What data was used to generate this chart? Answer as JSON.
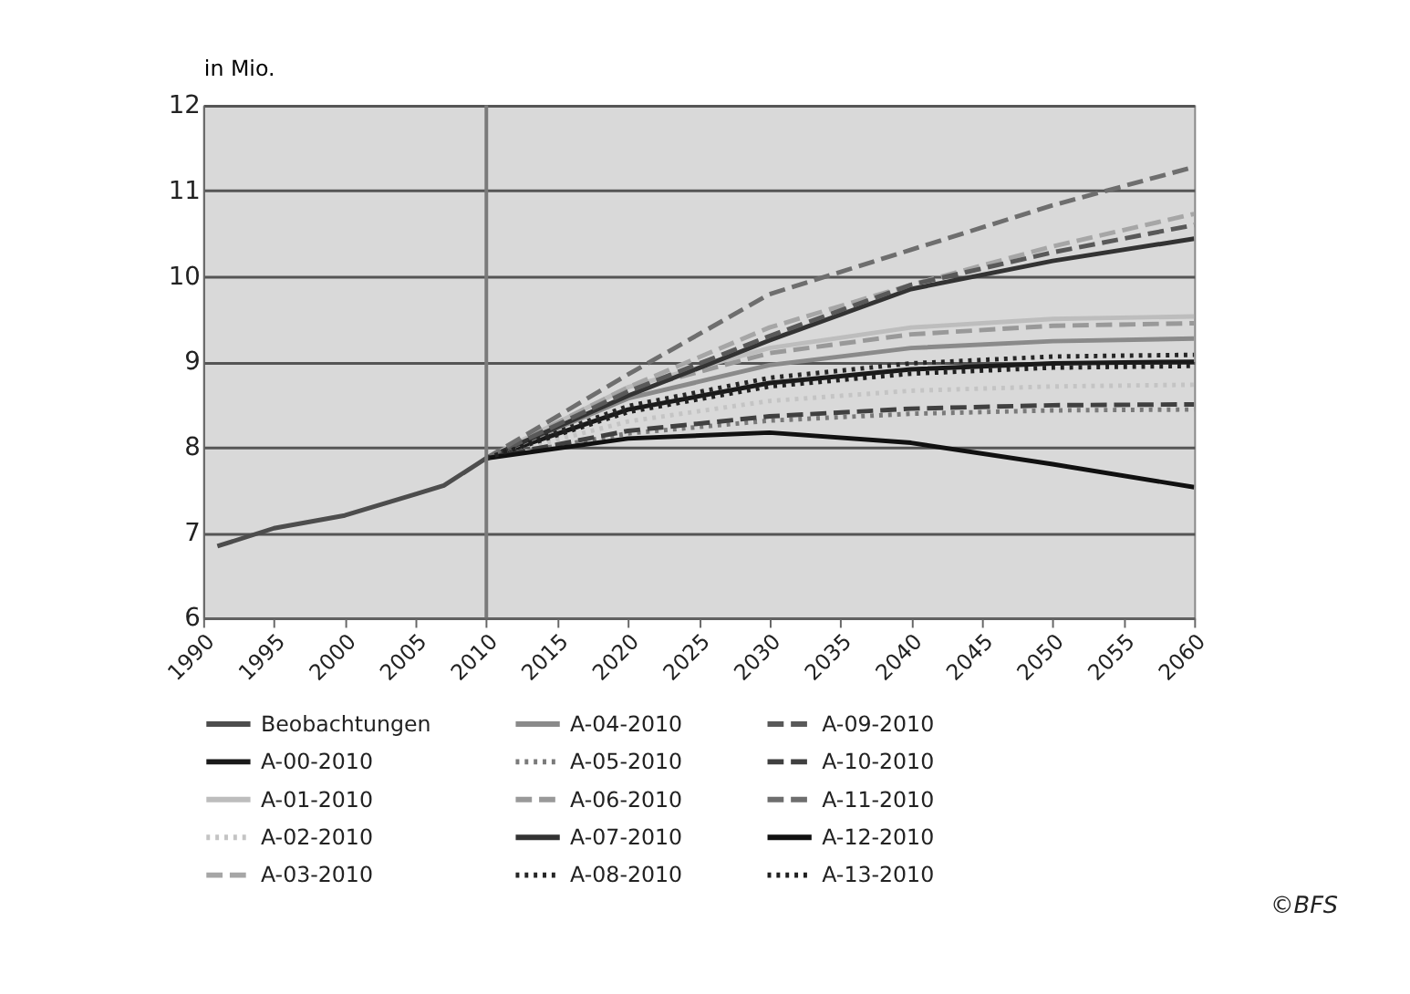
{
  "chart_data": {
    "type": "line",
    "ylabel": "in Mio.",
    "xlim": [
      1990,
      2060
    ],
    "xticks": [
      1990,
      1995,
      2000,
      2005,
      2010,
      2015,
      2020,
      2025,
      2030,
      2035,
      2040,
      2045,
      2050,
      2055,
      2060
    ],
    "ylim": [
      6,
      12
    ],
    "yticks": [
      6,
      7,
      8,
      9,
      10,
      11,
      12
    ],
    "grid": "y",
    "legend": "bottom",
    "ref_lines": [
      {
        "axis": "x",
        "value": 2010,
        "color": "#7a7a7a"
      }
    ],
    "annotations": [
      "©BFS"
    ],
    "series": [
      {
        "name": "Beobachtungen",
        "color": "#4d4d4d",
        "line_style": "solid",
        "x": [
          1991,
          1995,
          2000,
          2005,
          2007,
          2010
        ],
        "values": [
          6.84,
          7.05,
          7.2,
          7.45,
          7.55,
          7.87
        ]
      },
      {
        "name": "A-00-2010",
        "color": "#1a1a1a",
        "line_style": "solid",
        "x": [
          2010,
          2020,
          2030,
          2040,
          2050,
          2060
        ],
        "values": [
          7.87,
          8.44,
          8.75,
          8.91,
          8.98,
          9.0
        ]
      },
      {
        "name": "A-01-2010",
        "color": "#bdbdbd",
        "line_style": "solid",
        "x": [
          2010,
          2020,
          2030,
          2040,
          2050,
          2060
        ],
        "values": [
          7.87,
          8.7,
          9.16,
          9.4,
          9.5,
          9.53
        ]
      },
      {
        "name": "A-02-2010",
        "color": "#c4c4c4",
        "line_style": "dotted",
        "x": [
          2010,
          2020,
          2030,
          2040,
          2050,
          2060
        ],
        "values": [
          7.87,
          8.3,
          8.54,
          8.66,
          8.71,
          8.73
        ]
      },
      {
        "name": "A-03-2010",
        "color": "#a6a6a6",
        "line_style": "dashed",
        "x": [
          2010,
          2020,
          2030,
          2040,
          2050,
          2060
        ],
        "values": [
          7.87,
          8.7,
          9.4,
          9.9,
          10.35,
          10.73
        ]
      },
      {
        "name": "A-04-2010",
        "color": "#8a8a8a",
        "line_style": "solid",
        "x": [
          2010,
          2020,
          2030,
          2040,
          2050,
          2060
        ],
        "values": [
          7.87,
          8.57,
          8.96,
          9.16,
          9.24,
          9.27
        ]
      },
      {
        "name": "A-05-2010",
        "color": "#7a7a7a",
        "line_style": "dotted",
        "x": [
          2010,
          2020,
          2030,
          2040,
          2050,
          2060
        ],
        "values": [
          7.87,
          8.16,
          8.31,
          8.39,
          8.43,
          8.44
        ]
      },
      {
        "name": "A-06-2010",
        "color": "#999999",
        "line_style": "dashed",
        "x": [
          2010,
          2020,
          2030,
          2040,
          2050,
          2060
        ],
        "values": [
          7.87,
          8.66,
          9.1,
          9.32,
          9.42,
          9.45
        ]
      },
      {
        "name": "A-07-2010",
        "color": "#333333",
        "line_style": "solid",
        "x": [
          2010,
          2020,
          2030,
          2040,
          2050,
          2060
        ],
        "values": [
          7.87,
          8.6,
          9.25,
          9.85,
          10.18,
          10.44
        ]
      },
      {
        "name": "A-08-2010",
        "color": "#262626",
        "line_style": "dotted",
        "x": [
          2010,
          2020,
          2030,
          2040,
          2050,
          2060
        ],
        "values": [
          7.87,
          8.48,
          8.81,
          8.98,
          9.06,
          9.08
        ]
      },
      {
        "name": "A-09-2010",
        "color": "#595959",
        "line_style": "dashed",
        "x": [
          2010,
          2020,
          2030,
          2040,
          2050,
          2060
        ],
        "values": [
          7.87,
          8.65,
          9.3,
          9.9,
          10.28,
          10.6
        ]
      },
      {
        "name": "A-10-2010",
        "color": "#404040",
        "line_style": "dashed",
        "x": [
          2010,
          2020,
          2030,
          2040,
          2050,
          2060
        ],
        "values": [
          7.87,
          8.19,
          8.36,
          8.45,
          8.49,
          8.5
        ]
      },
      {
        "name": "A-11-2010",
        "color": "#6e6e6e",
        "line_style": "dashed",
        "x": [
          2010,
          2020,
          2030,
          2040,
          2050,
          2060
        ],
        "values": [
          7.87,
          8.85,
          9.79,
          10.31,
          10.83,
          11.28
        ]
      },
      {
        "name": "A-12-2010",
        "color": "#111111",
        "line_style": "solid",
        "x": [
          2010,
          2020,
          2030,
          2040,
          2050,
          2060
        ],
        "values": [
          7.87,
          8.1,
          8.17,
          8.05,
          7.8,
          7.53
        ]
      },
      {
        "name": "A-13-2010",
        "color": "#202020",
        "line_style": "dotted",
        "x": [
          2010,
          2020,
          2030,
          2040,
          2050,
          2060
        ],
        "values": [
          7.87,
          8.41,
          8.71,
          8.86,
          8.93,
          8.95
        ]
      }
    ]
  }
}
